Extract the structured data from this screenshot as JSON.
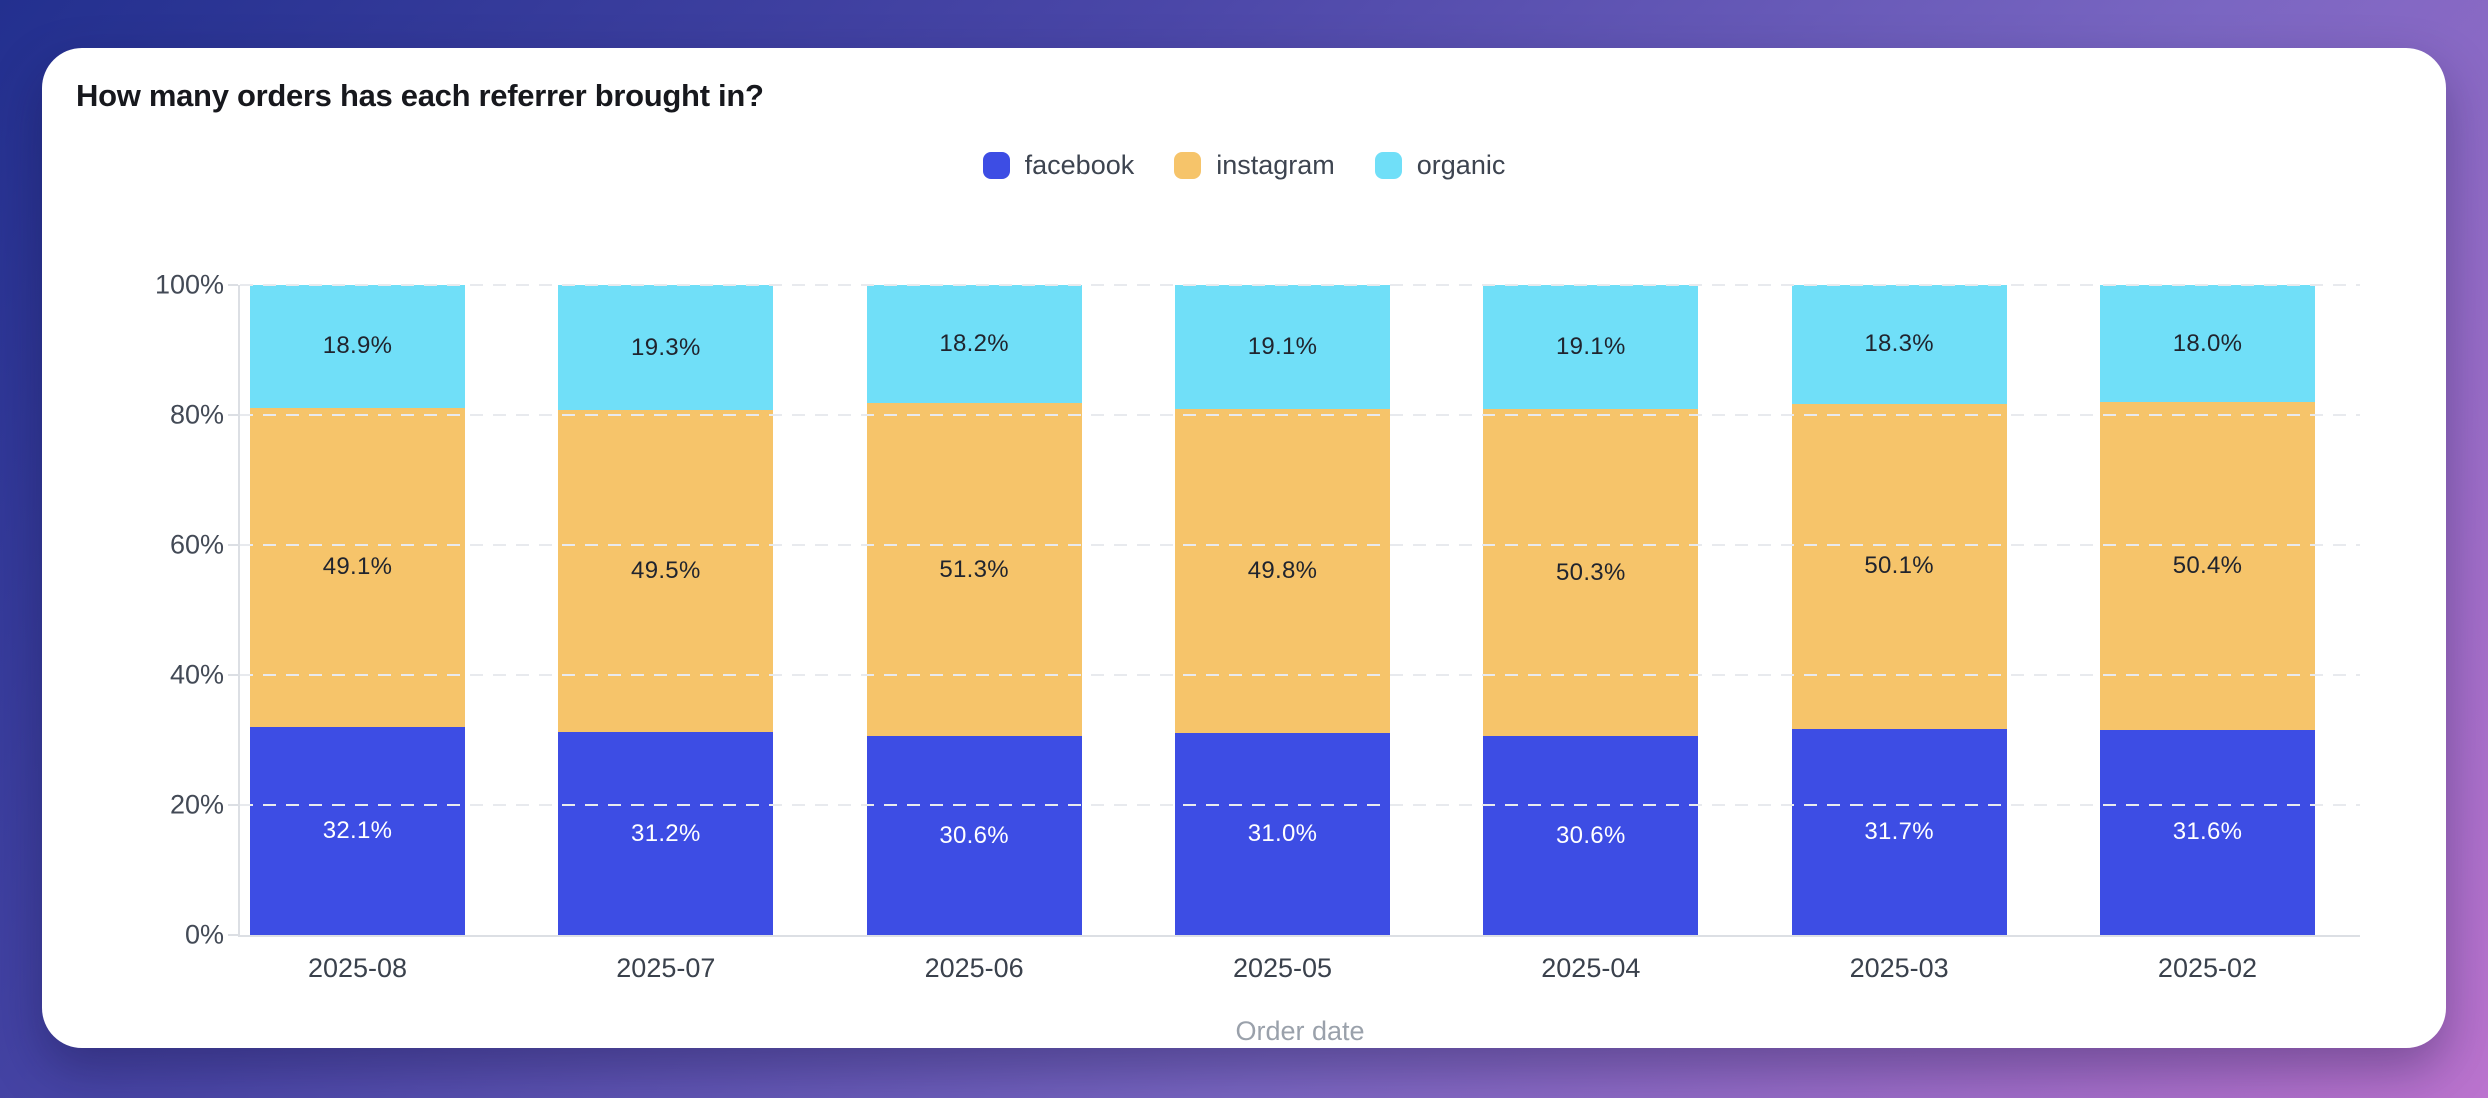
{
  "card": {
    "title": "How many orders has each referrer brought in?"
  },
  "chart_data": {
    "type": "bar",
    "stacked": true,
    "title": "How many orders has each referrer brought in?",
    "xlabel": "Order date",
    "ylabel": "",
    "categories": [
      "2025-08",
      "2025-07",
      "2025-06",
      "2025-05",
      "2025-04",
      "2025-03",
      "2025-02"
    ],
    "series": [
      {
        "name": "facebook",
        "color": "#3d4de4",
        "label_color": "#ffffff",
        "values": [
          32.1,
          31.2,
          30.6,
          31.0,
          30.6,
          31.7,
          31.6
        ]
      },
      {
        "name": "instagram",
        "color": "#f6c46a",
        "label_color": "#20242e",
        "values": [
          49.1,
          49.5,
          51.3,
          49.8,
          50.3,
          50.1,
          50.4
        ]
      },
      {
        "name": "organic",
        "color": "#70dff8",
        "label_color": "#20242e",
        "values": [
          18.9,
          19.3,
          18.2,
          19.1,
          19.1,
          18.3,
          18.0
        ]
      }
    ],
    "value_suffix": "%",
    "y_ticks_pct": [
      0,
      20,
      40,
      60,
      80,
      100
    ],
    "y_tick_labels": [
      "0%",
      "20%",
      "40%",
      "60%",
      "80%",
      "100%"
    ],
    "ylim": [
      0,
      100
    ],
    "grid": "dashed-horizontal",
    "legend_position": "top-center"
  },
  "colors": {
    "background_gradient_start": "#23308f",
    "background_gradient_mid": "#7a66c2",
    "background_gradient_end": "#bb73ce",
    "card_background": "#ffffff",
    "gridline": "#e8eaee",
    "axis_line": "#dcdfe4",
    "tick_label": "#434a56",
    "axis_title": "#9aa1ab",
    "legend_text": "#3d4450",
    "title_text": "#17181d"
  }
}
